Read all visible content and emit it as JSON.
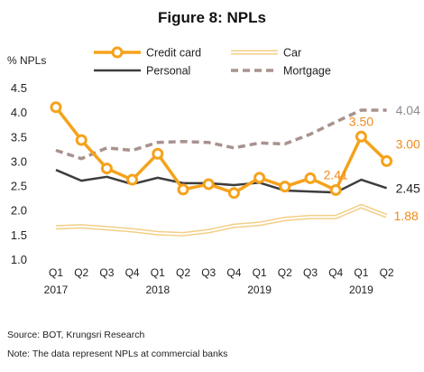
{
  "title": "Figure 8: NPLs",
  "source": "Source: BOT, Krungsri Research",
  "note": "Note: The data represent NPLs at commercial banks",
  "chart_data": {
    "type": "line",
    "title": "Figure 8: NPLs",
    "ylabel": "% NPLs",
    "xlabel": "",
    "ylim": [
      1.0,
      4.5
    ],
    "yticks": [
      "1.0",
      "1.5",
      "2.0",
      "2.5",
      "3.0",
      "3.5",
      "4.0",
      "4.5"
    ],
    "x": [
      "Q1",
      "Q2",
      "Q3",
      "Q4",
      "Q1",
      "Q2",
      "Q3",
      "Q4",
      "Q1",
      "Q2",
      "Q3",
      "Q4",
      "Q1",
      "Q2"
    ],
    "year_labels": [
      {
        "label": "2017",
        "index": 0
      },
      {
        "label": "2018",
        "index": 4
      },
      {
        "label": "2019",
        "index": 8
      },
      {
        "label": "2019",
        "index": 12
      }
    ],
    "grid": false,
    "legend": "top",
    "series": [
      {
        "name": "Credit card",
        "color": "#F5A21B",
        "values": [
          4.1,
          3.43,
          2.85,
          2.62,
          3.15,
          2.42,
          2.53,
          2.35,
          2.66,
          2.48,
          2.65,
          2.41,
          3.5,
          3.0
        ],
        "labels": [
          {
            "index": 11,
            "text": "2.41"
          },
          {
            "index": 12,
            "text": "3.50"
          },
          {
            "index": 13,
            "text": "3.00"
          }
        ]
      },
      {
        "name": "Car",
        "color": "#F3CF86",
        "values": [
          1.65,
          1.67,
          1.63,
          1.59,
          1.53,
          1.51,
          1.57,
          1.68,
          1.72,
          1.82,
          1.86,
          1.86,
          2.08,
          1.88
        ],
        "labels": [
          {
            "index": 13,
            "text": "1.88"
          }
        ]
      },
      {
        "name": "Personal",
        "color": "#3d3d3d",
        "values": [
          2.82,
          2.6,
          2.68,
          2.53,
          2.66,
          2.55,
          2.55,
          2.51,
          2.56,
          2.4,
          2.38,
          2.36,
          2.62,
          2.45
        ],
        "labels": [
          {
            "index": 13,
            "text": "2.45"
          }
        ]
      },
      {
        "name": "Mortgage",
        "color": "#A8928E",
        "values": [
          3.22,
          3.05,
          3.27,
          3.22,
          3.38,
          3.4,
          3.38,
          3.27,
          3.37,
          3.35,
          3.55,
          3.8,
          4.04,
          4.04
        ],
        "labels": [
          {
            "index": 13,
            "text": "4.04"
          }
        ]
      }
    ]
  }
}
